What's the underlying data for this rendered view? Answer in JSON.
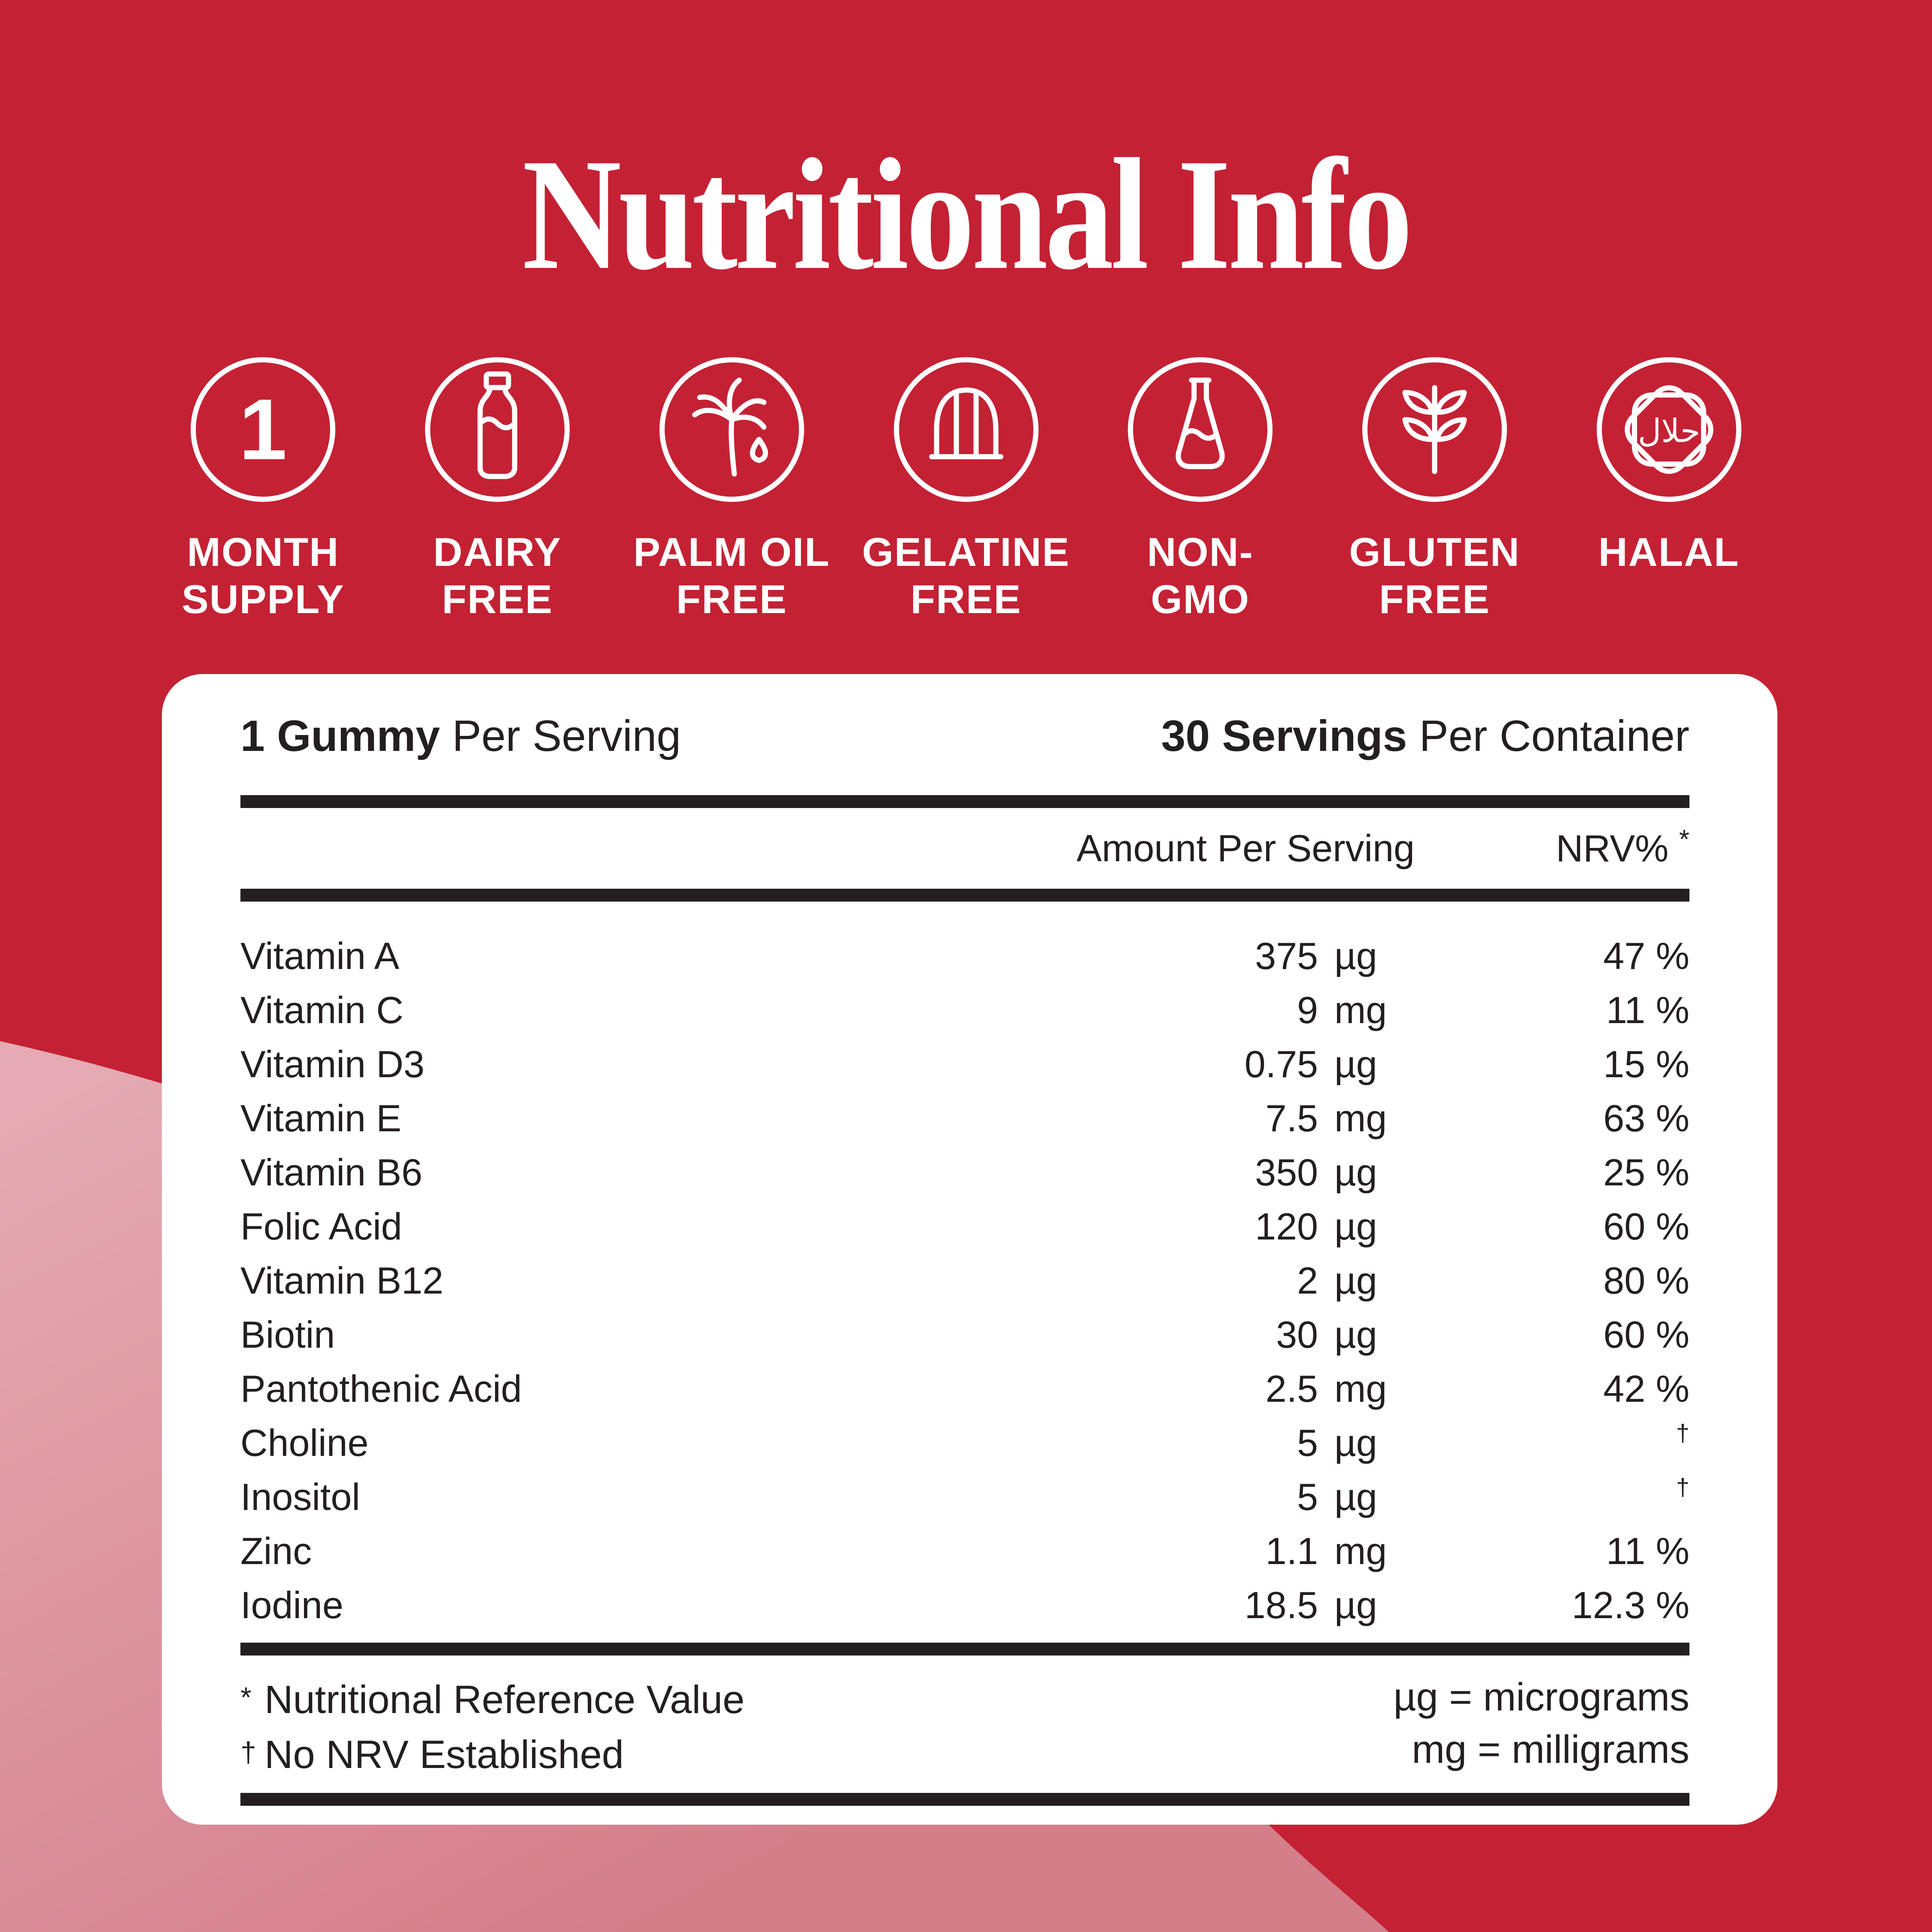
{
  "title": "Nutritional Info",
  "badges": [
    {
      "icon": "month-supply-icon",
      "circle_text": "1",
      "label_lines": [
        "MONTH",
        "SUPPLY"
      ]
    },
    {
      "icon": "dairy-free-icon",
      "label_lines": [
        "DAIRY",
        "FREE"
      ]
    },
    {
      "icon": "palm-oil-free-icon",
      "label_lines": [
        "PALM OIL",
        "FREE"
      ]
    },
    {
      "icon": "gelatine-free-icon",
      "label_lines": [
        "GELATINE",
        "FREE"
      ]
    },
    {
      "icon": "non-gmo-icon",
      "label_lines": [
        "NON-",
        "GMO"
      ]
    },
    {
      "icon": "gluten-free-icon",
      "label_lines": [
        "GLUTEN",
        "FREE"
      ]
    },
    {
      "icon": "halal-icon",
      "label_lines": [
        "HALAL"
      ]
    }
  ],
  "panel": {
    "serving_bold": "1 Gummy",
    "serving_rest": " Per Serving",
    "container_bold": "30 Servings",
    "container_rest": " Per Container",
    "col_amount": "Amount Per Serving",
    "col_nrv": "NRV%",
    "col_nrv_mark": "*",
    "rows": [
      {
        "name": "Vitamin A",
        "amount": "375",
        "unit": "µg",
        "nrv": "47 %"
      },
      {
        "name": "Vitamin C",
        "amount": "9",
        "unit": "mg",
        "nrv": "11 %"
      },
      {
        "name": "Vitamin D3",
        "amount": "0.75",
        "unit": "µg",
        "nrv": "15 %"
      },
      {
        "name": "Vitamin E",
        "amount": "7.5",
        "unit": "mg",
        "nrv": "63 %"
      },
      {
        "name": "Vitamin B6",
        "amount": "350",
        "unit": "µg",
        "nrv": "25 %"
      },
      {
        "name": "Folic Acid",
        "amount": "120",
        "unit": "µg",
        "nrv": "60 %"
      },
      {
        "name": "Vitamin B12",
        "amount": "2",
        "unit": "µg",
        "nrv": "80 %"
      },
      {
        "name": "Biotin",
        "amount": "30",
        "unit": "µg",
        "nrv": "60 %"
      },
      {
        "name": "Pantothenic Acid",
        "amount": "2.5",
        "unit": "mg",
        "nrv": "42 %"
      },
      {
        "name": "Choline",
        "amount": "5",
        "unit": "µg",
        "nrv": "†"
      },
      {
        "name": "Inositol",
        "amount": "5",
        "unit": "µg",
        "nrv": "†"
      },
      {
        "name": "Zinc",
        "amount": "1.1",
        "unit": "mg",
        "nrv": "11 %"
      },
      {
        "name": "Iodine",
        "amount": "18.5",
        "unit": "µg",
        "nrv": "12.3 %"
      }
    ],
    "footnotes_left": [
      {
        "mark": "*",
        "text": "Nutritional Reference Value"
      },
      {
        "mark": "†",
        "text": "No NRV Established"
      }
    ],
    "footnotes_right": [
      "µg = micrograms",
      "mg = milligrams"
    ]
  },
  "colors": {
    "background_red": "#C42134",
    "blob_pink_top": "#E5AAB3",
    "blob_pink_bottom": "#D47E8A",
    "card_white": "#FFFFFF",
    "text_black": "#231F20"
  }
}
